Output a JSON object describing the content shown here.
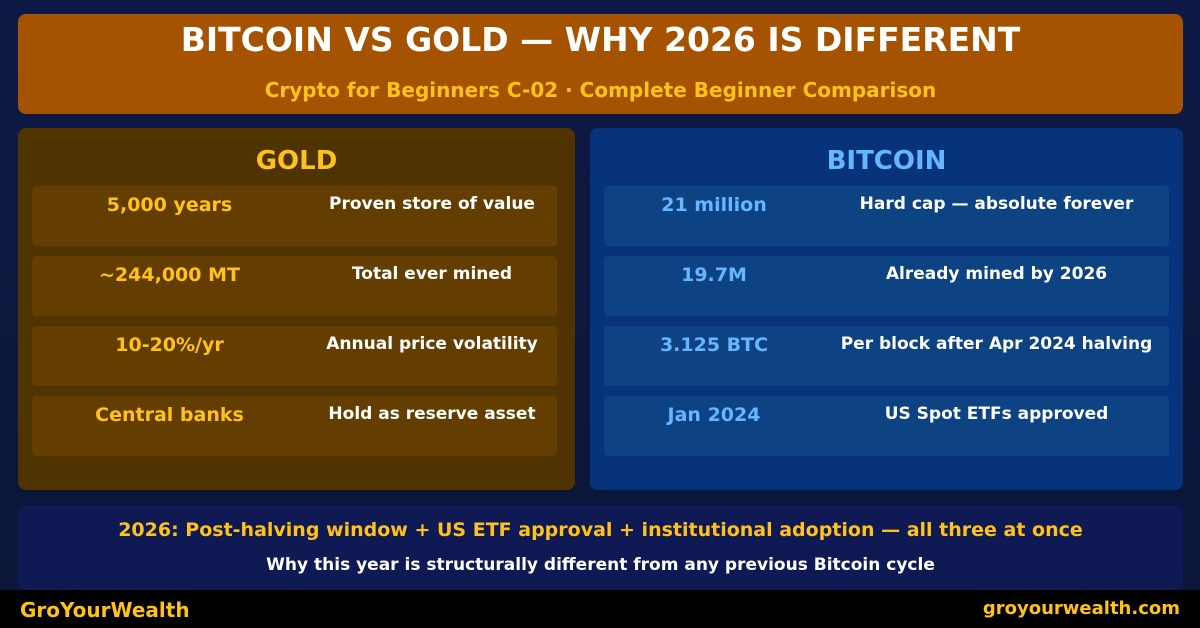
{
  "header": {
    "title": "BITCOIN VS GOLD — WHY 2026 IS DIFFERENT",
    "subtitle": "Crypto for Beginners C-02 · Complete Beginner Comparison"
  },
  "gold": {
    "title": "GOLD",
    "rows": [
      [
        "5,000 years",
        "Proven store of value"
      ],
      [
        "~244,000 MT",
        "Total ever mined"
      ],
      [
        "10-20%/yr",
        "Annual price volatility"
      ],
      [
        "Central banks",
        "Hold as reserve asset"
      ]
    ]
  },
  "bitcoin": {
    "title": "BITCOIN",
    "rows": [
      [
        "21 million",
        "Hard cap — absolute forever"
      ],
      [
        "19.7M",
        "Already mined by 2026"
      ],
      [
        "3.125 BTC",
        "Per block after Apr 2024 halving"
      ],
      [
        "Jan 2024",
        "US Spot ETFs approved"
      ]
    ]
  },
  "summary": {
    "headline": "2026: Post-halving window + US ETF approval + institutional adoption — all three at once",
    "subline": "Why this year is structurally different from any previous Bitcoin cycle"
  },
  "footer": {
    "brand": "GroYourWealth",
    "url": "groyourwealth.com"
  }
}
